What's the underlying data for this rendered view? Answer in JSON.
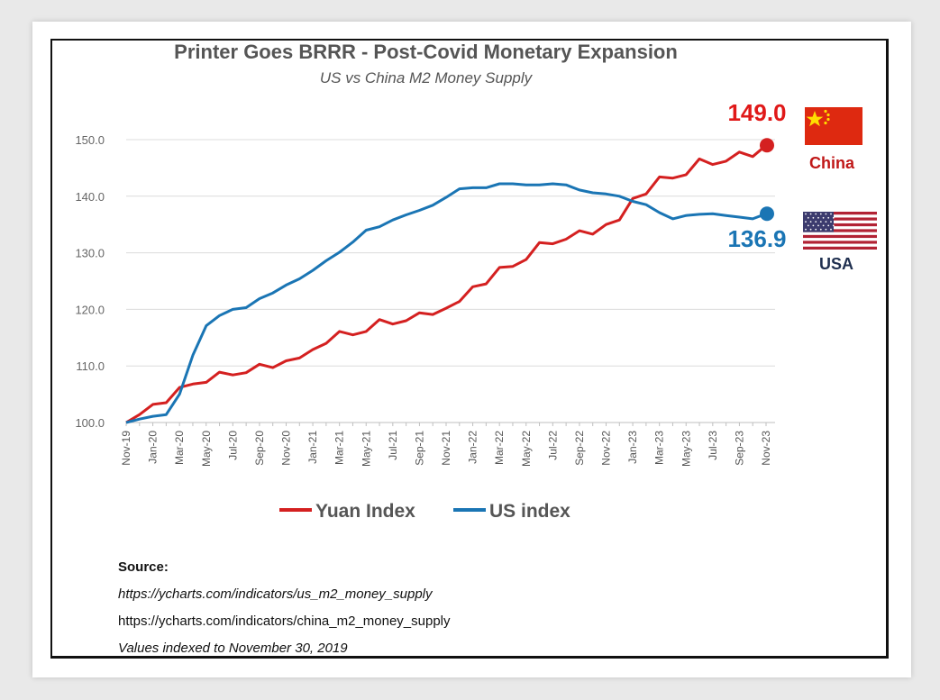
{
  "chart_data": {
    "type": "line",
    "title": "Printer Goes BRRR - Post-Covid Monetary Expansion",
    "subtitle": "US vs China M2 Money Supply",
    "ylim": [
      100,
      150
    ],
    "yticks": [
      "100.0",
      "110.0",
      "120.0",
      "130.0",
      "140.0",
      "150.0"
    ],
    "grid": true,
    "legend_position": "bottom",
    "x": [
      "Nov-19",
      "Dec-19",
      "Jan-20",
      "Feb-20",
      "Mar-20",
      "Apr-20",
      "May-20",
      "Jun-20",
      "Jul-20",
      "Aug-20",
      "Sep-20",
      "Oct-20",
      "Nov-20",
      "Dec-20",
      "Jan-21",
      "Feb-21",
      "Mar-21",
      "Apr-21",
      "May-21",
      "Jun-21",
      "Jul-21",
      "Aug-21",
      "Sep-21",
      "Oct-21",
      "Nov-21",
      "Dec-21",
      "Jan-22",
      "Feb-22",
      "Mar-22",
      "Apr-22",
      "May-22",
      "Jun-22",
      "Jul-22",
      "Aug-22",
      "Sep-22",
      "Oct-22",
      "Nov-22",
      "Dec-22",
      "Jan-23",
      "Feb-23",
      "Mar-23",
      "Apr-23",
      "May-23",
      "Jun-23",
      "Jul-23",
      "Aug-23",
      "Sep-23",
      "Oct-23",
      "Nov-23"
    ],
    "tick_labels": [
      "Nov-19",
      "Jan-20",
      "Mar-20",
      "May-20",
      "Jul-20",
      "Sep-20",
      "Nov-20",
      "Jan-21",
      "Mar-21",
      "May-21",
      "Jul-21",
      "Sep-21",
      "Nov-21",
      "Jan-22",
      "Mar-22",
      "May-22",
      "Jul-22",
      "Sep-22",
      "Nov-22",
      "Jan-23",
      "Mar-23",
      "May-23",
      "Jul-23",
      "Sep-23",
      "Nov-23"
    ],
    "series": [
      {
        "name": "Yuan Index",
        "color": "#d42020",
        "values": [
          100.0,
          101.4,
          103.2,
          103.5,
          106.2,
          106.8,
          107.1,
          108.9,
          108.4,
          108.8,
          110.3,
          109.7,
          110.9,
          111.4,
          112.9,
          114.0,
          116.1,
          115.5,
          116.1,
          118.2,
          117.4,
          118.0,
          119.4,
          119.1,
          120.2,
          121.4,
          124.0,
          124.5,
          127.4,
          127.6,
          128.8,
          131.8,
          131.6,
          132.4,
          133.9,
          133.3,
          135.0,
          135.8,
          139.6,
          140.4,
          143.4,
          143.2,
          143.8,
          146.6,
          145.6,
          146.2,
          147.8,
          147.0,
          149.0
        ],
        "end_label": "149.0"
      },
      {
        "name": "US index",
        "color": "#1a75b4",
        "values": [
          100.0,
          100.6,
          101.1,
          101.4,
          105.0,
          111.9,
          117.1,
          118.9,
          120.0,
          120.3,
          121.9,
          122.9,
          124.3,
          125.4,
          126.9,
          128.6,
          130.1,
          131.9,
          134.0,
          134.6,
          135.8,
          136.7,
          137.5,
          138.4,
          139.8,
          141.3,
          141.5,
          141.5,
          142.2,
          142.2,
          142.0,
          142.0,
          142.2,
          142.0,
          141.1,
          140.6,
          140.4,
          140.0,
          139.1,
          138.5,
          137.1,
          136.0,
          136.6,
          136.8,
          136.9,
          136.6,
          136.3,
          136.0,
          136.9
        ],
        "end_label": "136.9"
      }
    ]
  },
  "labels": {
    "china": "China",
    "usa": "USA"
  },
  "legend": {
    "yuan": "Yuan Index",
    "us": "US index"
  },
  "source": {
    "heading": "Source:",
    "line1": "https://ycharts.com/indicators/us_m2_money_supply",
    "line2": "https://ycharts.com/indicators/china_m2_money_supply",
    "line3": "Values indexed to November 30, 2019"
  },
  "colors": {
    "china_red": "#d42020",
    "us_blue": "#1a75b4",
    "flag_red": "#de2910",
    "flag_yellow": "#ffde00",
    "us_flag_red": "#b22234",
    "us_flag_blue": "#3c3b6e"
  }
}
